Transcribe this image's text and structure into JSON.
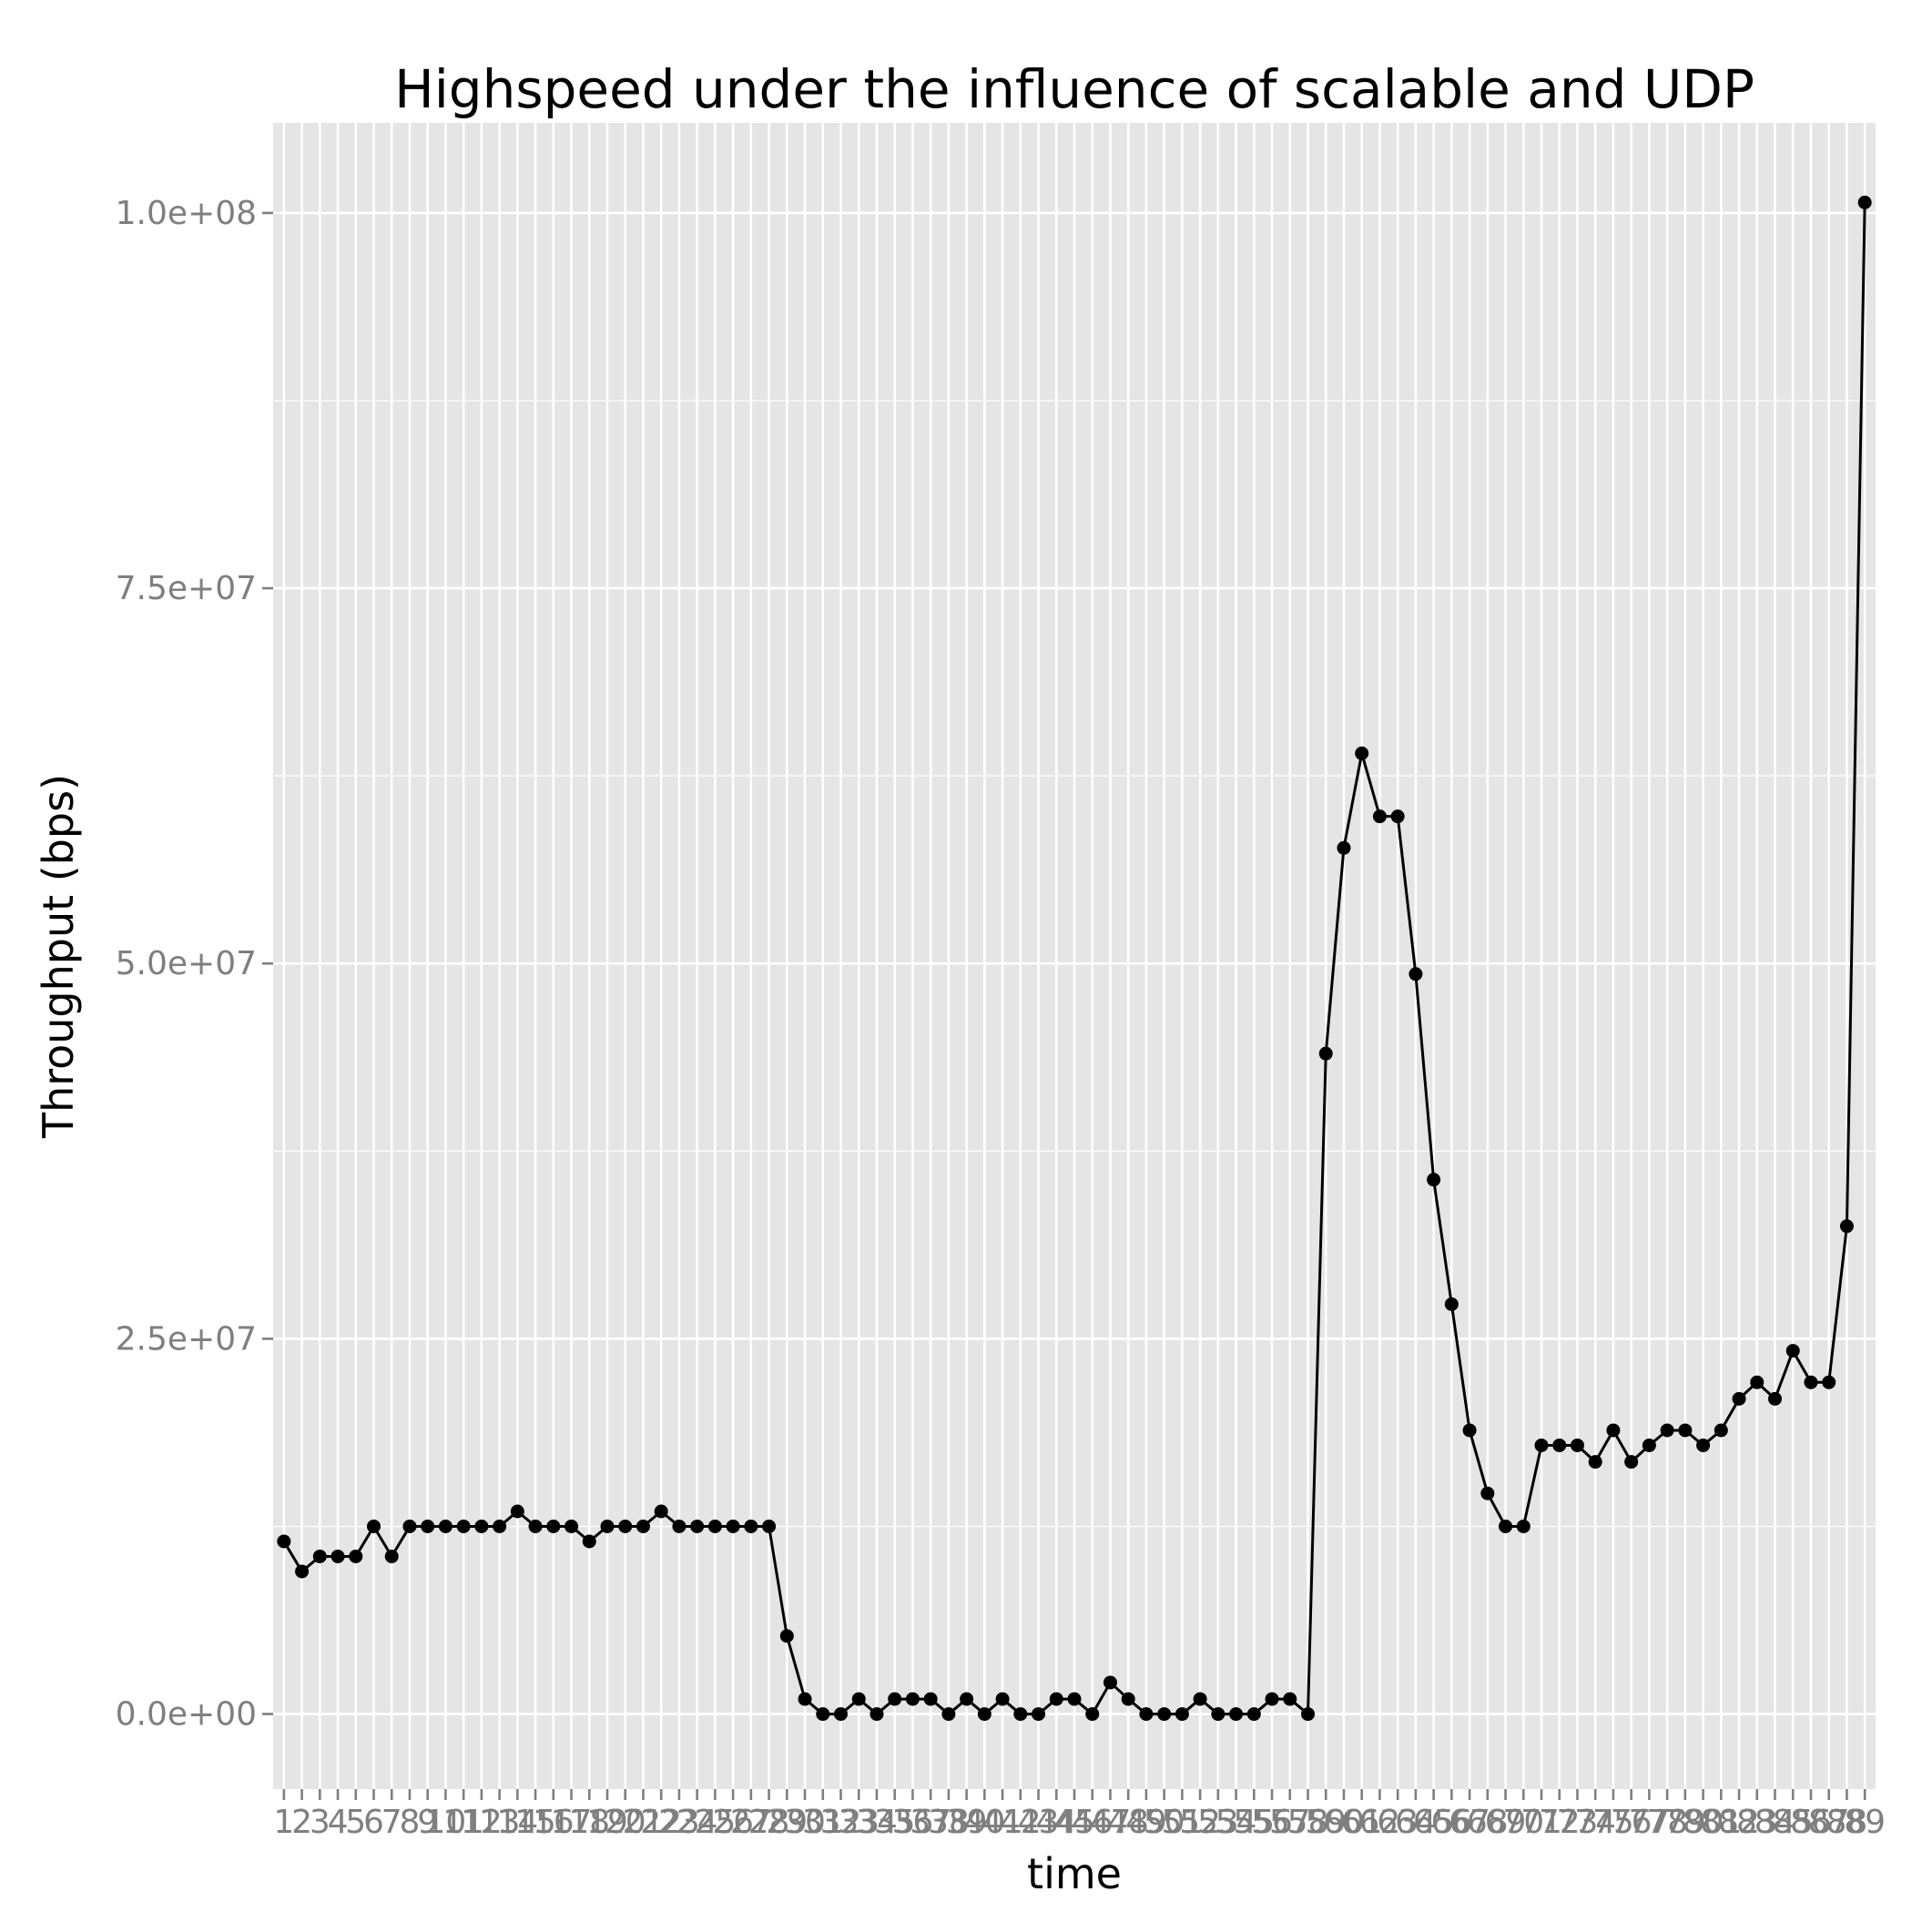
{
  "chart_data": {
    "type": "line",
    "title": "Highspeed under the influence of scalable and UDP",
    "xlabel": "time",
    "ylabel": "Throughput (bps)",
    "x": [
      1,
      2,
      3,
      4,
      5,
      6,
      7,
      8,
      9,
      10,
      11,
      12,
      13,
      14,
      15,
      16,
      17,
      18,
      19,
      20,
      21,
      22,
      23,
      24,
      25,
      26,
      27,
      28,
      29,
      30,
      31,
      32,
      33,
      34,
      35,
      36,
      37,
      38,
      39,
      40,
      41,
      42,
      43,
      44,
      45,
      46,
      47,
      48,
      49,
      50,
      51,
      52,
      53,
      54,
      55,
      56,
      57,
      58,
      59,
      60,
      61,
      62,
      63,
      64,
      65,
      66,
      67,
      68,
      69,
      70,
      71,
      72,
      73,
      74,
      75,
      76,
      77,
      78,
      79,
      80,
      81,
      82,
      83,
      84,
      85,
      86,
      87,
      88,
      89
    ],
    "x_tick_labels": [
      "1",
      "2",
      "3",
      "4",
      "5",
      "6",
      "7",
      "8",
      "9",
      "10",
      "11",
      "12",
      "13",
      "14",
      "15",
      "16",
      "17",
      "18",
      "19",
      "20",
      "21",
      "22",
      "23",
      "24",
      "25",
      "26",
      "27",
      "28",
      "29",
      "30",
      "31",
      "32",
      "33",
      "34",
      "35",
      "36",
      "37",
      "38",
      "39",
      "40",
      "41",
      "42",
      "43",
      "44",
      "45",
      "46",
      "47",
      "48",
      "49",
      "50",
      "51",
      "52",
      "53",
      "54",
      "55",
      "56",
      "57",
      "58",
      "59",
      "60",
      "61",
      "62",
      "63",
      "64",
      "65",
      "66",
      "67",
      "68",
      "69",
      "70",
      "71",
      "72",
      "73",
      "74",
      "75",
      "76",
      "77",
      "78",
      "79",
      "80",
      "81",
      "82",
      "83",
      "84",
      "85",
      "86",
      "87",
      "88",
      "89"
    ],
    "series": [
      {
        "values": [
          11500000,
          9500000,
          10500000,
          10500000,
          10500000,
          12500000,
          10500000,
          12500000,
          12500000,
          12500000,
          12500000,
          12500000,
          12500000,
          13500000,
          12500000,
          12500000,
          12500000,
          11500000,
          12500000,
          12500000,
          12500000,
          13500000,
          12500000,
          12500000,
          12500000,
          12500000,
          12500000,
          12500000,
          5200000,
          1000000,
          0,
          0,
          1000000,
          0,
          1000000,
          1000000,
          1000000,
          0,
          1000000,
          0,
          1000000,
          0,
          0,
          1000000,
          1000000,
          0,
          2100000,
          1000000,
          0,
          0,
          0,
          1000000,
          0,
          0,
          0,
          1000000,
          1000000,
          0,
          44000000,
          57700000,
          64000000,
          59800000,
          59800000,
          49300000,
          35600000,
          27300000,
          18900000,
          14700000,
          12500000,
          12500000,
          17900000,
          17900000,
          17900000,
          16800000,
          18900000,
          16800000,
          17900000,
          18900000,
          18900000,
          17900000,
          18900000,
          21000000,
          22100000,
          21000000,
          24200000,
          22100000,
          22100000,
          32500000,
          100700000
        ],
        "color": "#000000"
      }
    ],
    "y_ticks": [
      0,
      25000000,
      50000000,
      75000000,
      100000000
    ],
    "y_tick_labels": [
      "0.0e+00",
      "2.5e+07",
      "5.0e+07",
      "7.5e+07",
      "1.0e+08"
    ],
    "ylim": [
      -5000000,
      106000000
    ],
    "xlim": [
      0.4,
      89.6
    ],
    "grid": true,
    "legend": "none",
    "panel_background": "#e5e5e5",
    "grid_color": "#ffffff"
  }
}
